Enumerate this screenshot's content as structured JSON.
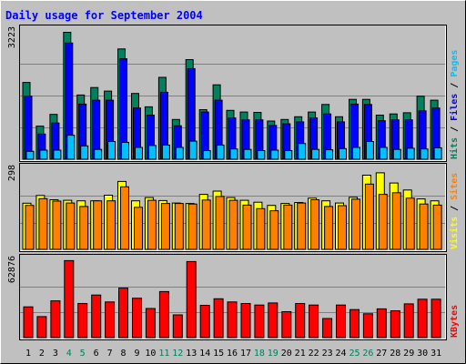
{
  "chart_data": {
    "type": "bar",
    "title": "Daily usage for September 2004",
    "days": [
      "1",
      "2",
      "3",
      "4",
      "5",
      "6",
      "7",
      "8",
      "9",
      "10",
      "11",
      "12",
      "13",
      "14",
      "15",
      "16",
      "17",
      "18",
      "19",
      "20",
      "21",
      "22",
      "23",
      "24",
      "25",
      "26",
      "27",
      "28",
      "29",
      "30",
      "31"
    ],
    "weekend_days": [
      4,
      5,
      11,
      12,
      18,
      19,
      25,
      26
    ],
    "colors": {
      "background": "#c0c0c0",
      "title": "#0000ff",
      "frame": "#000000",
      "day_normal": "#000000",
      "day_weekend": "#00805c",
      "hits": "#00805c",
      "files": "#0000ff",
      "pages": "#00c0ff",
      "visits": "#ffff00",
      "sites": "#ff8000",
      "kbytes": "#ff0000"
    },
    "panels": [
      {
        "id": "hits-files-pages",
        "ymax_label": "3223",
        "ymax": 3223,
        "legend": [
          {
            "text": "Hits",
            "color": "#00805c"
          },
          {
            "text": "/",
            "color": "#000000"
          },
          {
            "text": "Files",
            "color": "#0000ff"
          },
          {
            "text": "/",
            "color": "#000000"
          },
          {
            "text": "Pages",
            "color": "#00c0ff"
          }
        ],
        "series": [
          {
            "name": "Hits",
            "color": "#00805c",
            "values": [
              1950,
              840,
              1140,
              3223,
              1630,
              1820,
              1730,
              2800,
              1670,
              1330,
              2080,
              1010,
              2530,
              1260,
              1890,
              1240,
              1200,
              1190,
              970,
              1010,
              1080,
              1200,
              1390,
              1080,
              1520,
              1520,
              1120,
              1150,
              1180,
              1600,
              1500
            ]
          },
          {
            "name": "Files",
            "color": "#0000ff",
            "values": [
              1600,
              640,
              920,
              2950,
              1400,
              1500,
              1500,
              2550,
              1300,
              1120,
              1700,
              850,
              2300,
              1200,
              1500,
              1050,
              1000,
              1000,
              860,
              900,
              950,
              1050,
              1150,
              950,
              1400,
              1390,
              980,
              1000,
              1000,
              1230,
              1300
            ]
          },
          {
            "name": "Pages",
            "color": "#00c0ff",
            "values": [
              200,
              230,
              230,
              610,
              340,
              250,
              450,
              430,
              300,
              350,
              360,
              300,
              460,
              220,
              360,
              260,
              250,
              220,
              230,
              220,
              400,
              250,
              240,
              270,
              300,
              450,
              300,
              250,
              280,
              260,
              290
            ]
          }
        ]
      },
      {
        "id": "visits-sites",
        "ymax_label": "298",
        "ymax": 298,
        "legend": [
          {
            "text": "Visits",
            "color": "#ffff00"
          },
          {
            "text": "/",
            "color": "#000000"
          },
          {
            "text": "Sites",
            "color": "#ff8000"
          }
        ],
        "series": [
          {
            "name": "Visits",
            "color": "#ffff00",
            "values": [
              171,
              200,
              184,
              182,
              180,
              180,
              201,
              252,
              180,
              192,
              181,
              172,
              170,
              204,
              216,
              192,
              182,
              175,
              163,
              170,
              174,
              190,
              180,
              172,
              193,
              275,
              284,
              246,
              220,
              187,
              180
            ]
          },
          {
            "name": "Sites",
            "color": "#ff8000",
            "values": [
              163,
              188,
              179,
              172,
              159,
              180,
              180,
              232,
              156,
              182,
              170,
              170,
              168,
              183,
              196,
              182,
              164,
              151,
              143,
              164,
              172,
              184,
              159,
              162,
              186,
              242,
              204,
              210,
              190,
              168,
              164
            ]
          }
        ]
      },
      {
        "id": "kbytes",
        "ymax_label": "62876",
        "ymax": 62876,
        "legend": [
          {
            "text": "KBytes",
            "color": "#ff0000"
          }
        ],
        "series": [
          {
            "name": "KBytes",
            "color": "#ff0000",
            "values": [
              25100,
              17200,
              30000,
              62876,
              27900,
              34800,
              29100,
              40400,
              32200,
              23800,
              37600,
              18600,
              62100,
              26400,
              31700,
              29100,
              27900,
              26600,
              28300,
              21200,
              27900,
              26600,
              15600,
              26600,
              22900,
              19500,
              23500,
              21900,
              27600,
              31400,
              31400
            ]
          }
        ]
      }
    ]
  }
}
